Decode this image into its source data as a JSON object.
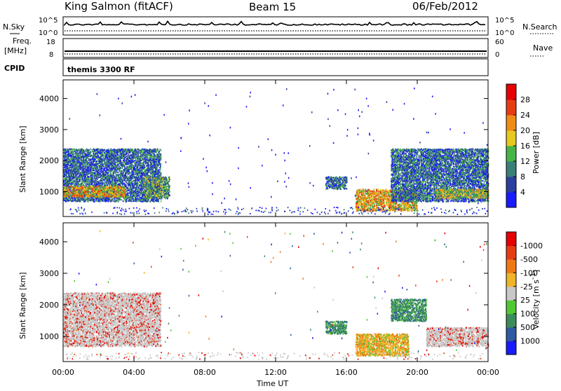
{
  "header": {
    "station": "King Salmon (fitACF)",
    "beam": "Beam 15",
    "date": "06/Feb/2012"
  },
  "strips": {
    "nsky_label": "N.Sky",
    "nsearch_label": "N.Search",
    "nsky_ticks": [
      "10^5",
      "10^0"
    ],
    "nsky_right_ticks": [
      "10^5",
      "10^0"
    ],
    "freq_label": "Freq.",
    "freq_unit": "[MHz]",
    "freq_ticks": [
      "18",
      "8"
    ],
    "nave_label": "Nave",
    "nave_ticks": [
      "60",
      "0"
    ],
    "cpid_label": "CPID",
    "cpid_value": "themis 3300 RF"
  },
  "x_axis": {
    "label": "Time UT",
    "ticks": [
      "00:00",
      "04:00",
      "08:00",
      "12:00",
      "16:00",
      "20:00",
      "00:00"
    ],
    "range_hours": [
      0,
      24
    ]
  },
  "chart_data": [
    {
      "type": "heatmap",
      "panel": "power",
      "ylabel": "Slant Range [km]",
      "yticks": [
        "1000",
        "2000",
        "3000",
        "4000"
      ],
      "ylim": [
        200,
        4600
      ],
      "colorbar": {
        "label": "Power [dB]",
        "ticks": [
          "4",
          "8",
          "12",
          "16",
          "20",
          "24",
          "28"
        ],
        "colors": [
          "#1a1aff",
          "#2d3f9e",
          "#3a7f78",
          "#46b446",
          "#e6c81e",
          "#f08c14",
          "#e63c14",
          "#e60000"
        ]
      },
      "regions": [
        {
          "t0": 0.0,
          "t1": 5.5,
          "r0": 700,
          "r1": 2400,
          "level": 12
        },
        {
          "t0": 0.0,
          "t1": 3.5,
          "r0": 850,
          "r1": 1200,
          "level": 22
        },
        {
          "t0": 4.5,
          "t1": 6.0,
          "r0": 800,
          "r1": 1500,
          "level": 14
        },
        {
          "t0": 14.8,
          "t1": 16.0,
          "r0": 1100,
          "r1": 1500,
          "level": 10
        },
        {
          "t0": 16.5,
          "t1": 20.0,
          "r0": 400,
          "r1": 1100,
          "level": 22
        },
        {
          "t0": 18.5,
          "t1": 24.0,
          "r0": 700,
          "r1": 2400,
          "level": 10
        },
        {
          "t0": 21.0,
          "t1": 24.0,
          "r0": 800,
          "r1": 1100,
          "level": 20
        }
      ]
    },
    {
      "type": "heatmap",
      "panel": "velocity",
      "ylabel": "Slant Range [km]",
      "yticks": [
        "1000",
        "2000",
        "3000",
        "4000"
      ],
      "ylim": [
        200,
        4600
      ],
      "colorbar": {
        "label": "Velocity [m s",
        "label_sup": "-1",
        "label_end": "]",
        "ticks": [
          "1000",
          "500",
          "100",
          "25",
          "-25",
          "-100",
          "-500",
          "-1000"
        ],
        "colors": [
          "#1a1aff",
          "#2d5aa0",
          "#3c8c5a",
          "#50c832",
          "#c8c8c8",
          "#f0b428",
          "#f07814",
          "#e63c14",
          "#e60000"
        ]
      },
      "regions": [
        {
          "t0": 0.0,
          "t1": 5.5,
          "r0": 700,
          "r1": 2400,
          "velocity": 0
        },
        {
          "t0": 14.8,
          "t1": 16.0,
          "r0": 1100,
          "r1": 1500,
          "velocity": 200
        },
        {
          "t0": 16.5,
          "t1": 19.5,
          "r0": 400,
          "r1": 1100,
          "velocity": -200
        },
        {
          "t0": 18.5,
          "t1": 20.5,
          "r0": 1500,
          "r1": 2200,
          "velocity": 200
        },
        {
          "t0": 20.5,
          "t1": 24.0,
          "r0": 700,
          "r1": 1300,
          "velocity": 0
        }
      ]
    }
  ]
}
